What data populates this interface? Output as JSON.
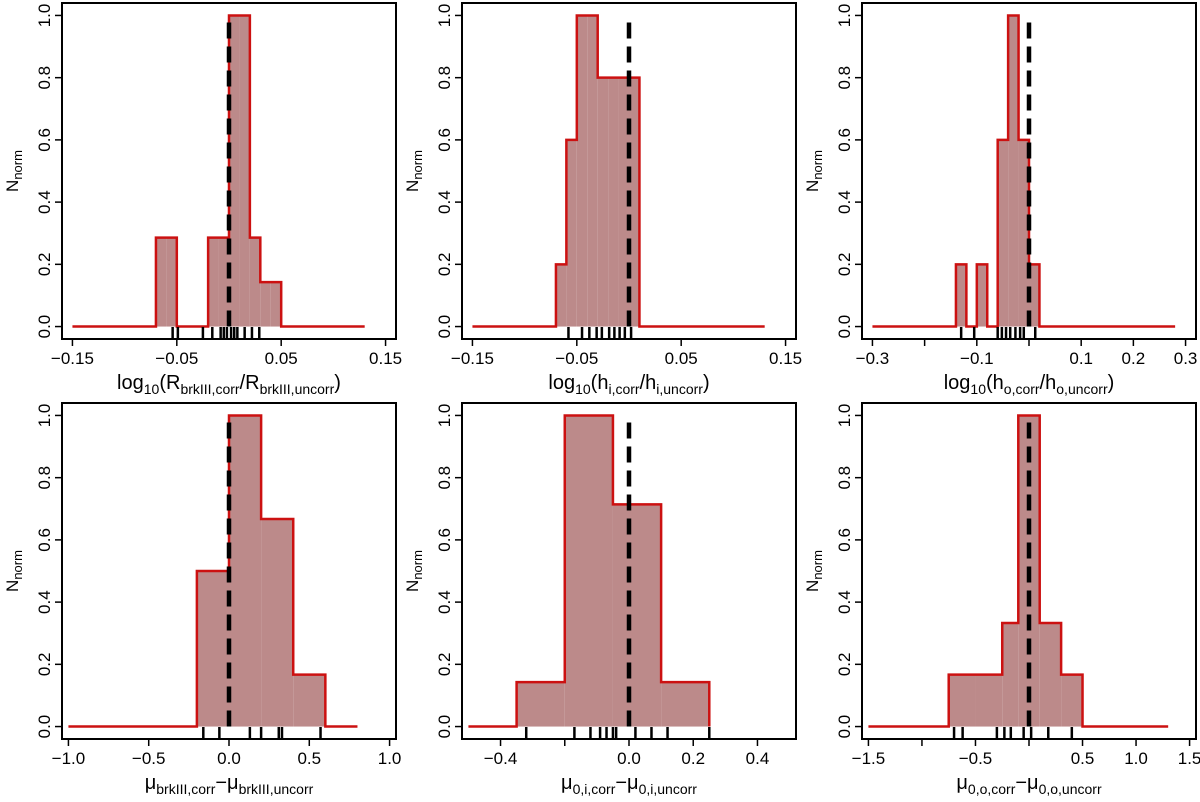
{
  "colors": {
    "fill": "#bc8a8a",
    "line": "#cc1111",
    "ref": "#000000",
    "frame": "#000000"
  },
  "chart_data": [
    {
      "type": "histogram",
      "ylabel": "N",
      "ylabel_sub": "norm",
      "xlabel_parts": [
        [
          "log",
          "n"
        ],
        [
          "10",
          "s"
        ],
        [
          "(R",
          "n"
        ],
        [
          "brkIII,corr",
          "s"
        ],
        [
          "/R",
          "n"
        ],
        [
          "brkIII,uncorr",
          "s"
        ],
        [
          ")",
          "n"
        ]
      ],
      "xlim": [
        -0.16,
        0.16
      ],
      "ylim": [
        -0.04,
        1.04
      ],
      "xticks": [
        -0.15,
        -0.05,
        0.05,
        0.15
      ],
      "xtick_labels": [
        "−0.15",
        "−0.05",
        "0.05",
        "0.15"
      ],
      "yticks": [
        0,
        0.2,
        0.4,
        0.6,
        0.8,
        1.0
      ],
      "ytick_labels": [
        "0.0",
        "0.2",
        "0.4",
        "0.6",
        "0.8",
        "1.0"
      ],
      "line_start": -0.15,
      "line_end": 0.13,
      "edges": [
        -0.07,
        -0.06,
        -0.05,
        -0.04,
        -0.03,
        -0.02,
        -0.01,
        0.0,
        0.01,
        0.02,
        0.03,
        0.04,
        0.05
      ],
      "values": [
        0.286,
        0.286,
        0,
        0,
        0,
        0.286,
        0.286,
        1.0,
        1.0,
        0.286,
        0.143,
        0.143
      ],
      "ref_x": 0.0,
      "rug": [
        -0.054,
        -0.049,
        -0.025,
        -0.016,
        -0.008,
        -0.005,
        -0.002,
        0.002,
        0.005,
        0.008,
        0.015,
        0.022,
        0.029
      ]
    },
    {
      "type": "histogram",
      "ylabel": "N",
      "ylabel_sub": "norm",
      "xlabel_parts": [
        [
          "log",
          "n"
        ],
        [
          "10",
          "s"
        ],
        [
          "(h",
          "n"
        ],
        [
          "i,corr",
          "s"
        ],
        [
          "/h",
          "n"
        ],
        [
          "i,uncorr",
          "s"
        ],
        [
          ")",
          "n"
        ]
      ],
      "xlim": [
        -0.16,
        0.16
      ],
      "ylim": [
        -0.04,
        1.04
      ],
      "xticks": [
        -0.15,
        -0.05,
        0.05,
        0.15
      ],
      "xtick_labels": [
        "−0.15",
        "−0.05",
        "0.05",
        "0.15"
      ],
      "yticks": [
        0,
        0.2,
        0.4,
        0.6,
        0.8,
        1.0
      ],
      "ytick_labels": [
        "0.0",
        "0.2",
        "0.4",
        "0.6",
        "0.8",
        "1.0"
      ],
      "line_start": -0.15,
      "line_end": 0.13,
      "edges": [
        -0.07,
        -0.06,
        -0.05,
        -0.04,
        -0.03,
        -0.02,
        -0.01,
        0.0,
        0.01
      ],
      "values": [
        0.2,
        0.6,
        1.0,
        1.0,
        0.8,
        0.8,
        0.8,
        0.8
      ],
      "ref_x": 0.0,
      "rug": [
        -0.058,
        -0.045,
        -0.038,
        -0.031,
        -0.026,
        -0.019,
        -0.014,
        -0.009,
        -0.004,
        0.002
      ]
    },
    {
      "type": "histogram",
      "ylabel": "N",
      "ylabel_sub": "norm",
      "xlabel_parts": [
        [
          "log",
          "n"
        ],
        [
          "10",
          "s"
        ],
        [
          "(h",
          "n"
        ],
        [
          "o,corr",
          "s"
        ],
        [
          "/h",
          "n"
        ],
        [
          "o,uncorr",
          "s"
        ],
        [
          ")",
          "n"
        ]
      ],
      "xlim": [
        -0.32,
        0.32
      ],
      "ylim": [
        -0.04,
        1.04
      ],
      "xticks": [
        -0.3,
        -0.2,
        -0.1,
        0,
        0.1,
        0.2,
        0.3
      ],
      "xtick_labels": [
        "−0.3",
        "",
        "−0.1",
        "",
        "0.1",
        "0.2",
        "0.3"
      ],
      "yticks": [
        0,
        0.2,
        0.4,
        0.6,
        0.8,
        1.0
      ],
      "ytick_labels": [
        "0.0",
        "0.2",
        "0.4",
        "0.6",
        "0.8",
        "1.0"
      ],
      "line_start": -0.3,
      "line_end": 0.28,
      "edges": [
        -0.14,
        -0.12,
        -0.1,
        -0.08,
        -0.06,
        -0.04,
        -0.02,
        0.0,
        0.02
      ],
      "values": [
        0.2,
        0,
        0.2,
        0,
        0.6,
        1.0,
        0.6,
        0.2
      ],
      "ref_x": 0.0,
      "rug": [
        -0.13,
        -0.105,
        -0.06,
        -0.052,
        -0.044,
        -0.036,
        -0.026,
        -0.017,
        -0.01,
        0.012
      ]
    },
    {
      "type": "histogram",
      "ylabel": "N",
      "ylabel_sub": "norm",
      "xlabel_parts": [
        [
          "μ",
          "n"
        ],
        [
          "brkIII,corr",
          "s"
        ],
        [
          "−μ",
          "n"
        ],
        [
          "brkIII,uncorr",
          "s"
        ]
      ],
      "xlim": [
        -1.04,
        1.04
      ],
      "ylim": [
        -0.04,
        1.04
      ],
      "xticks": [
        -1.0,
        -0.5,
        0.0,
        0.5,
        1.0
      ],
      "xtick_labels": [
        "−1.0",
        "−0.5",
        "0.0",
        "0.5",
        "1.0"
      ],
      "yticks": [
        0,
        0.2,
        0.4,
        0.6,
        0.8,
        1.0
      ],
      "ytick_labels": [
        "0.0",
        "0.2",
        "0.4",
        "0.6",
        "0.8",
        "1.0"
      ],
      "line_start": -1.0,
      "line_end": 0.8,
      "edges": [
        -0.2,
        0.0,
        0.2,
        0.4,
        0.6
      ],
      "values": [
        0.5,
        1.0,
        0.667,
        0.167
      ],
      "ref_x": 0.0,
      "rug": [
        -0.16,
        -0.06,
        0.13,
        0.2,
        0.31,
        0.33,
        0.57
      ]
    },
    {
      "type": "histogram",
      "ylabel": "N",
      "ylabel_sub": "norm",
      "xlabel_parts": [
        [
          "μ",
          "n"
        ],
        [
          "0,i,corr",
          "s"
        ],
        [
          "−μ",
          "n"
        ],
        [
          "0,i,uncorr",
          "s"
        ]
      ],
      "xlim": [
        -0.52,
        0.52
      ],
      "ylim": [
        -0.04,
        1.04
      ],
      "xticks": [
        -0.4,
        -0.2,
        0.0,
        0.2,
        0.4
      ],
      "xtick_labels": [
        "−0.4",
        "",
        "0.0",
        "0.2",
        "0.4"
      ],
      "yticks": [
        0,
        0.2,
        0.4,
        0.6,
        0.8,
        1.0
      ],
      "ytick_labels": [
        "0.0",
        "0.2",
        "0.4",
        "0.6",
        "0.8",
        "1.0"
      ],
      "line_start": -0.5,
      "line_end": 0.25,
      "edges": [
        -0.35,
        -0.2,
        -0.05,
        0.1,
        0.25
      ],
      "values": [
        0.143,
        1.0,
        0.714,
        0.143
      ],
      "ref_x": 0.0,
      "rug": [
        -0.32,
        -0.17,
        -0.12,
        -0.09,
        -0.07,
        -0.05,
        -0.04,
        0.02,
        0.07,
        0.12,
        0.25
      ]
    },
    {
      "type": "histogram",
      "ylabel": "N",
      "ylabel_sub": "norm",
      "xlabel_parts": [
        [
          "μ",
          "n"
        ],
        [
          "0,o,corr",
          "s"
        ],
        [
          "−μ",
          "n"
        ],
        [
          "0,o,uncorr",
          "s"
        ]
      ],
      "xlim": [
        -1.56,
        1.56
      ],
      "ylim": [
        -0.04,
        1.04
      ],
      "xticks": [
        -1.5,
        -1.0,
        -0.5,
        0.0,
        0.5,
        1.0,
        1.5
      ],
      "xtick_labels": [
        "−1.5",
        "",
        "−0.5",
        "",
        "0.5",
        "1.0",
        "1.5"
      ],
      "yticks": [
        0,
        0.2,
        0.4,
        0.6,
        0.8,
        1.0
      ],
      "ytick_labels": [
        "0.0",
        "0.2",
        "0.4",
        "0.6",
        "0.8",
        "1.0"
      ],
      "line_start": -1.5,
      "line_end": 1.3,
      "edges": [
        -0.75,
        -0.5,
        -0.25,
        -0.1,
        0.1,
        0.3,
        0.5
      ],
      "values": [
        0.167,
        0.167,
        0.333,
        1.0,
        0.333,
        0.167
      ],
      "ref_x": 0.0,
      "rug": [
        -0.7,
        -0.62,
        -0.3,
        -0.23,
        -0.17,
        -0.05,
        0.02,
        0.18,
        0.4
      ]
    }
  ]
}
